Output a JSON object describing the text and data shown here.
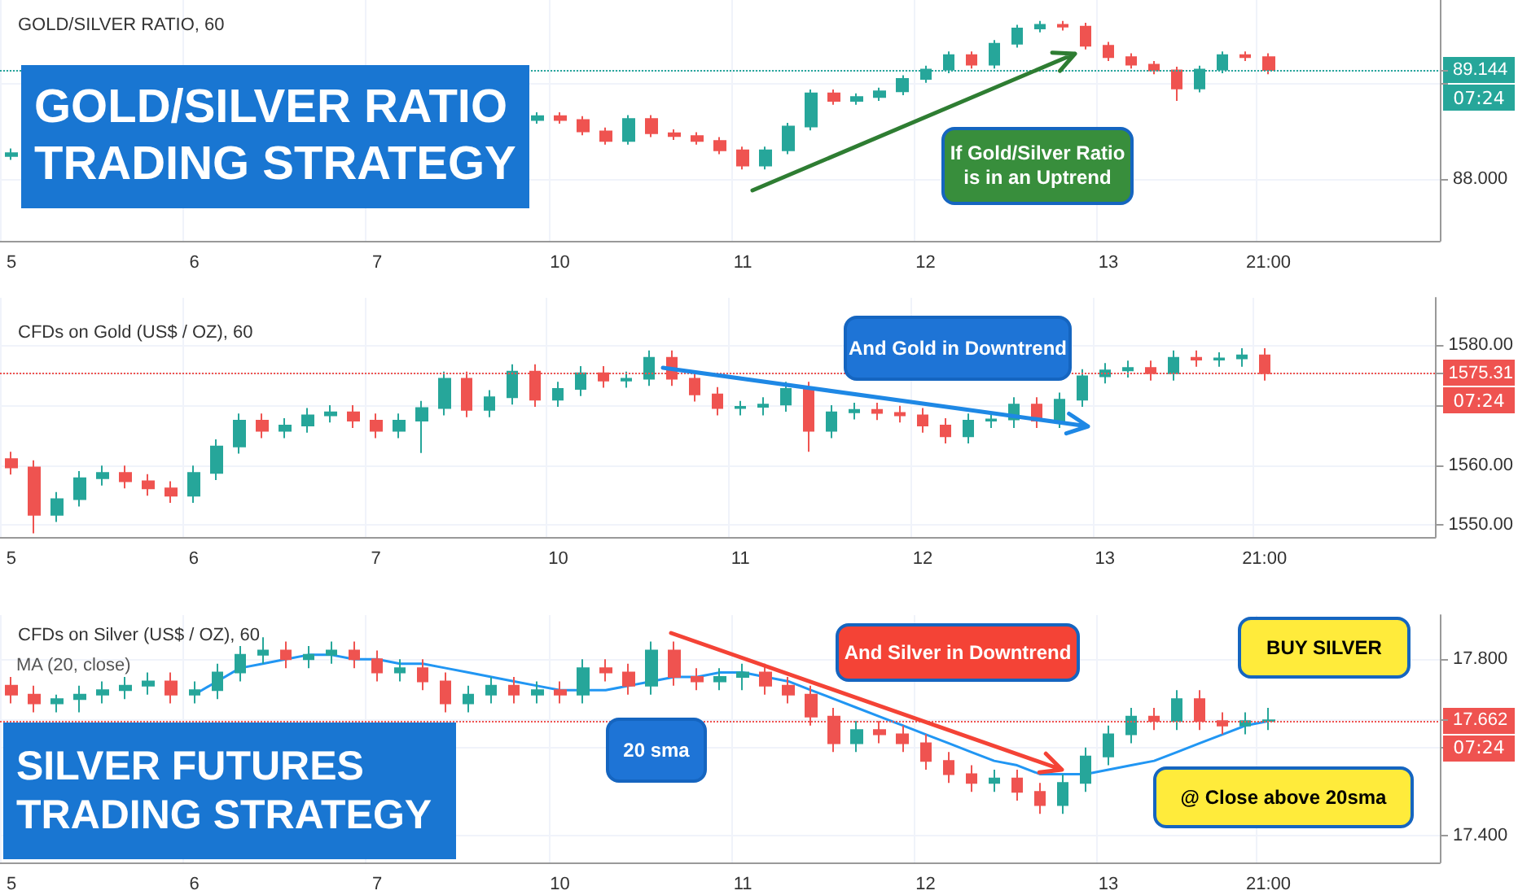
{
  "chart_data": [
    {
      "type": "candlestick",
      "title": "GOLD/SILVER RATIO, 60",
      "categories": [
        "5",
        null,
        null,
        null,
        null,
        null,
        null,
        null,
        "6",
        null,
        null,
        null,
        null,
        null,
        null,
        null,
        "7",
        null,
        null,
        null,
        null,
        null,
        null,
        null,
        "10",
        null,
        null,
        null,
        null,
        null,
        null,
        null,
        "11",
        null,
        null,
        null,
        null,
        null,
        null,
        null,
        "12",
        null,
        null,
        null,
        null,
        null,
        null,
        null,
        "13",
        null,
        null,
        null,
        null,
        null,
        null,
        "21:00",
        null,
        null,
        null,
        null,
        null,
        null,
        null
      ],
      "ohlc": [
        [
          88.24,
          88.32,
          88.2,
          88.27
        ],
        null,
        null,
        null,
        null,
        null,
        null,
        null,
        null,
        null,
        null,
        null,
        null,
        null,
        null,
        null,
        null,
        null,
        null,
        null,
        null,
        null,
        null,
        [
          88.62,
          88.7,
          88.58,
          88.66
        ],
        [
          88.66,
          88.7,
          88.58,
          88.62
        ],
        [
          88.62,
          88.66,
          88.46,
          88.5
        ],
        [
          88.5,
          88.54,
          88.36,
          88.4
        ],
        [
          88.4,
          88.67,
          88.36,
          88.63
        ],
        [
          88.63,
          88.67,
          88.44,
          88.48
        ],
        [
          88.48,
          88.52,
          88.41,
          88.45
        ],
        [
          88.45,
          88.49,
          88.36,
          88.4
        ],
        [
          88.4,
          88.44,
          88.26,
          88.3
        ],
        [
          88.3,
          88.34,
          88.1,
          88.14
        ],
        [
          88.14,
          88.34,
          88.1,
          88.3
        ],
        [
          88.3,
          88.59,
          88.26,
          88.55
        ],
        [
          88.55,
          88.94,
          88.51,
          88.9
        ],
        [
          88.9,
          88.94,
          88.78,
          88.82
        ],
        [
          88.82,
          88.9,
          88.78,
          88.86
        ],
        [
          88.86,
          88.96,
          88.82,
          88.92
        ],
        [
          88.92,
          89.09,
          88.88,
          89.05
        ],
        [
          89.05,
          89.19,
          89.01,
          89.15
        ],
        [
          89.15,
          89.34,
          89.11,
          89.3
        ],
        [
          89.3,
          89.34,
          89.16,
          89.2
        ],
        [
          89.2,
          89.46,
          89.16,
          89.42
        ],
        [
          89.42,
          89.62,
          89.38,
          89.58
        ],
        [
          89.58,
          89.66,
          89.54,
          89.62
        ],
        [
          89.62,
          89.66,
          89.56,
          89.6
        ],
        [
          89.6,
          89.64,
          89.36,
          89.4
        ],
        [
          89.4,
          89.44,
          89.24,
          89.28
        ],
        [
          89.28,
          89.32,
          89.16,
          89.2
        ],
        [
          89.2,
          89.24,
          89.1,
          89.14
        ],
        [
          89.14,
          89.18,
          88.82,
          88.95
        ],
        [
          88.95,
          89.19,
          88.91,
          89.15
        ],
        [
          89.15,
          89.34,
          89.11,
          89.3
        ],
        [
          89.3,
          89.34,
          89.24,
          89.28
        ],
        [
          89.28,
          89.32,
          89.1,
          89.144
        ],
        null,
        null,
        null,
        null,
        null,
        null,
        null
      ],
      "colors": [
        "#26a69a",
        null,
        null,
        null,
        null,
        null,
        null,
        null,
        null,
        null,
        null,
        null,
        null,
        null,
        null,
        null,
        null,
        null,
        null,
        null,
        null,
        null,
        null,
        "#26a69a",
        "#ef5350",
        "#ef5350",
        "#ef5350",
        "#26a69a",
        "#ef5350",
        "#ef5350",
        "#ef5350",
        "#ef5350",
        "#ef5350",
        "#26a69a",
        "#26a69a",
        "#26a69a",
        "#ef5350",
        "#26a69a",
        "#26a69a",
        "#26a69a",
        "#26a69a",
        "#26a69a",
        "#ef5350",
        "#26a69a",
        "#26a69a",
        "#26a69a",
        "#ef5350",
        "#ef5350",
        "#ef5350",
        "#ef5350",
        "#ef5350",
        "#ef5350",
        "#26a69a",
        "#26a69a",
        "#ef5350",
        "#ef5350",
        null,
        null,
        null,
        null,
        null,
        null,
        null
      ],
      "ylim": [
        87.35,
        89.88
      ],
      "yticks": [
        {
          "value": 88,
          "label": "88.000"
        },
        {
          "value": 89,
          "label": null
        },
        {
          "value": 89.144,
          "label": "89.144"
        }
      ],
      "grid": true,
      "ref_lines": [
        {
          "axis": "y",
          "value": 89.144,
          "color": "#26a69a",
          "line_style": "dotted"
        }
      ],
      "annotations": [
        "07:24",
        "GOLD/SILVER RATIO\nTRADING STRATEGY",
        "If Gold/Silver Ratio\nis in an Uptrend"
      ]
    },
    {
      "type": "candlestick",
      "title": "CFDs on Gold (US$ / OZ), 60",
      "categories": [
        "5",
        null,
        null,
        null,
        null,
        null,
        null,
        null,
        "6",
        null,
        null,
        null,
        null,
        null,
        null,
        null,
        "7",
        null,
        null,
        null,
        null,
        null,
        null,
        null,
        "10",
        null,
        null,
        null,
        null,
        null,
        null,
        null,
        "11",
        null,
        null,
        null,
        null,
        null,
        null,
        null,
        "12",
        null,
        null,
        null,
        null,
        null,
        null,
        null,
        "13",
        null,
        null,
        null,
        null,
        null,
        null,
        "21:00",
        null,
        null,
        null,
        null,
        null,
        null,
        null
      ],
      "ohlc": [
        [
          1561.0,
          1562.2,
          1558.4,
          1559.6
        ],
        [
          1559.6,
          1560.8,
          1548.6,
          1551.7
        ],
        [
          1551.7,
          1555.5,
          1550.5,
          1554.3
        ],
        [
          1554.3,
          1559.0,
          1553.1,
          1557.8
        ],
        [
          1557.8,
          1559.9,
          1556.6,
          1558.7
        ],
        [
          1558.7,
          1559.9,
          1556.1,
          1557.3
        ],
        [
          1557.3,
          1558.5,
          1554.9,
          1556.1
        ],
        [
          1556.1,
          1557.3,
          1553.7,
          1554.9
        ],
        [
          1554.9,
          1559.9,
          1553.7,
          1558.7
        ],
        [
          1558.7,
          1564.3,
          1557.5,
          1563.1
        ],
        [
          1563.1,
          1568.6,
          1561.9,
          1567.4
        ],
        [
          1567.4,
          1568.6,
          1564.5,
          1565.7
        ],
        [
          1565.7,
          1567.8,
          1564.5,
          1566.6
        ],
        [
          1566.6,
          1569.5,
          1565.4,
          1568.3
        ],
        [
          1568.3,
          1570.0,
          1567.1,
          1568.8
        ],
        [
          1568.8,
          1570.0,
          1566.2,
          1567.4
        ],
        [
          1567.4,
          1568.6,
          1564.5,
          1565.7
        ],
        [
          1565.7,
          1568.6,
          1564.5,
          1567.4
        ],
        [
          1567.4,
          1570.7,
          1562.0,
          1569.5
        ],
        [
          1569.5,
          1575.6,
          1568.3,
          1574.4
        ],
        [
          1574.4,
          1575.6,
          1568.0,
          1569.2
        ],
        [
          1569.2,
          1572.5,
          1568.0,
          1571.3
        ],
        [
          1571.3,
          1576.8,
          1570.1,
          1575.6
        ],
        [
          1575.6,
          1576.8,
          1569.7,
          1570.9
        ],
        [
          1570.9,
          1573.9,
          1569.7,
          1572.7
        ],
        [
          1572.7,
          1576.5,
          1571.5,
          1575.3
        ],
        [
          1575.3,
          1576.5,
          1572.9,
          1574.1
        ],
        [
          1574.1,
          1575.6,
          1572.9,
          1574.4
        ],
        [
          1574.4,
          1579.1,
          1573.2,
          1577.9
        ],
        [
          1577.9,
          1579.1,
          1573.2,
          1574.4
        ],
        [
          1574.4,
          1575.6,
          1570.6,
          1571.8
        ],
        [
          1571.8,
          1573.0,
          1568.3,
          1569.5
        ],
        [
          1569.5,
          1570.7,
          1568.3,
          1569.7
        ],
        [
          1569.7,
          1571.3,
          1568.3,
          1570.1
        ],
        [
          1570.1,
          1573.9,
          1568.9,
          1572.7
        ],
        [
          1572.7,
          1573.9,
          1562.2,
          1565.7
        ],
        [
          1565.7,
          1570.0,
          1564.5,
          1568.8
        ],
        [
          1568.8,
          1570.4,
          1567.6,
          1569.2
        ],
        [
          1569.2,
          1570.4,
          1567.5,
          1568.7
        ],
        [
          1568.7,
          1569.9,
          1567.1,
          1568.3
        ],
        [
          1568.3,
          1569.5,
          1565.4,
          1566.6
        ],
        [
          1566.6,
          1567.8,
          1563.6,
          1564.8
        ],
        [
          1564.8,
          1568.6,
          1563.6,
          1567.4
        ],
        [
          1567.4,
          1568.6,
          1566.2,
          1567.6
        ],
        [
          1567.6,
          1571.3,
          1566.2,
          1570.1
        ],
        [
          1570.1,
          1571.3,
          1566.2,
          1567.4
        ],
        [
          1567.4,
          1572.1,
          1566.2,
          1570.9
        ],
        [
          1570.9,
          1576.0,
          1569.7,
          1574.8
        ],
        [
          1574.8,
          1577.0,
          1573.6,
          1575.8
        ],
        [
          1575.8,
          1577.4,
          1574.6,
          1576.2
        ],
        [
          1576.2,
          1577.4,
          1574.1,
          1575.3
        ],
        [
          1575.3,
          1579.1,
          1574.1,
          1577.9
        ],
        [
          1577.9,
          1579.1,
          1576.4,
          1577.6
        ],
        [
          1577.6,
          1578.8,
          1576.4,
          1577.8
        ],
        [
          1577.8,
          1579.5,
          1576.4,
          1578.3
        ],
        [
          1578.3,
          1579.5,
          1574.1,
          1575.31
        ],
        null,
        null,
        null,
        null,
        null,
        null,
        null
      ],
      "colors": [
        "#ef5350",
        "#ef5350",
        "#26a69a",
        "#26a69a",
        "#26a69a",
        "#ef5350",
        "#ef5350",
        "#ef5350",
        "#26a69a",
        "#26a69a",
        "#26a69a",
        "#ef5350",
        "#26a69a",
        "#26a69a",
        "#26a69a",
        "#ef5350",
        "#ef5350",
        "#26a69a",
        "#26a69a",
        "#26a69a",
        "#ef5350",
        "#26a69a",
        "#26a69a",
        "#ef5350",
        "#26a69a",
        "#26a69a",
        "#ef5350",
        "#26a69a",
        "#26a69a",
        "#ef5350",
        "#ef5350",
        "#ef5350",
        "#26a69a",
        "#26a69a",
        "#26a69a",
        "#ef5350",
        "#26a69a",
        "#26a69a",
        "#ef5350",
        "#ef5350",
        "#ef5350",
        "#ef5350",
        "#26a69a",
        "#26a69a",
        "#26a69a",
        "#ef5350",
        "#26a69a",
        "#26a69a",
        "#26a69a",
        "#26a69a",
        "#ef5350",
        "#26a69a",
        "#ef5350",
        "#26a69a",
        "#26a69a",
        "#ef5350",
        null,
        null,
        null,
        null,
        null,
        null,
        null
      ],
      "ylim": [
        1548.0,
        1587.9
      ],
      "yticks": [
        {
          "value": 1550,
          "label": "1550.00"
        },
        {
          "value": 1560,
          "label": "1560.00"
        },
        {
          "value": 1570,
          "label": null
        },
        {
          "value": 1575.31,
          "label": "1575.31"
        },
        {
          "value": 1580,
          "label": "1580.00"
        }
      ],
      "grid": true,
      "ref_lines": [
        {
          "axis": "y",
          "value": 1575.31,
          "color": "#ef5350",
          "line_style": "dotted"
        }
      ],
      "annotations": [
        "07:24",
        "And Gold in Downtrend"
      ]
    },
    {
      "type": "candlestick",
      "title": "CFDs on Silver (US$ / OZ), 60",
      "categories": [
        "5",
        null,
        null,
        null,
        null,
        null,
        null,
        null,
        "6",
        null,
        null,
        null,
        null,
        null,
        null,
        null,
        "7",
        null,
        null,
        null,
        null,
        null,
        null,
        null,
        "10",
        null,
        null,
        null,
        null,
        null,
        null,
        null,
        "11",
        null,
        null,
        null,
        null,
        null,
        null,
        null,
        "12",
        null,
        null,
        null,
        null,
        null,
        null,
        null,
        "13",
        null,
        null,
        null,
        null,
        null,
        null,
        "21:00",
        null,
        null,
        null,
        null,
        null,
        null,
        null
      ],
      "series": [
        {
          "ohlc": [
            [
              17.74,
              17.76,
              17.7,
              17.72
            ],
            [
              17.72,
              17.74,
              17.68,
              17.7
            ],
            [
              17.7,
              17.72,
              17.68,
              17.71
            ],
            [
              17.71,
              17.74,
              17.68,
              17.72
            ],
            [
              17.72,
              17.75,
              17.7,
              17.73
            ],
            [
              17.73,
              17.76,
              17.71,
              17.74
            ],
            [
              17.74,
              17.77,
              17.72,
              17.75
            ],
            [
              17.75,
              17.77,
              17.7,
              17.72
            ],
            [
              17.72,
              17.75,
              17.7,
              17.73
            ],
            [
              17.73,
              17.79,
              17.71,
              17.77
            ],
            [
              17.77,
              17.83,
              17.75,
              17.81
            ],
            [
              17.81,
              17.85,
              17.79,
              17.82
            ],
            [
              17.82,
              17.84,
              17.78,
              17.8
            ],
            [
              17.8,
              17.83,
              17.78,
              17.81
            ],
            [
              17.81,
              17.84,
              17.79,
              17.82
            ],
            [
              17.82,
              17.84,
              17.78,
              17.8
            ],
            [
              17.8,
              17.82,
              17.75,
              17.77
            ],
            [
              17.77,
              17.8,
              17.75,
              17.78
            ],
            [
              17.78,
              17.8,
              17.73,
              17.75
            ],
            [
              17.75,
              17.77,
              17.68,
              17.7
            ],
            [
              17.7,
              17.74,
              17.68,
              17.72
            ],
            [
              17.72,
              17.76,
              17.7,
              17.74
            ],
            [
              17.74,
              17.76,
              17.7,
              17.72
            ],
            [
              17.72,
              17.75,
              17.7,
              17.73
            ],
            [
              17.73,
              17.75,
              17.7,
              17.72
            ],
            [
              17.72,
              17.8,
              17.7,
              17.78
            ],
            [
              17.78,
              17.8,
              17.75,
              17.77
            ],
            [
              17.77,
              17.79,
              17.72,
              17.74
            ],
            [
              17.74,
              17.84,
              17.72,
              17.82
            ],
            [
              17.82,
              17.84,
              17.74,
              17.76
            ],
            [
              17.76,
              17.78,
              17.73,
              17.75
            ],
            [
              17.75,
              17.78,
              17.73,
              17.76
            ],
            [
              17.76,
              17.79,
              17.73,
              17.77
            ],
            [
              17.77,
              17.79,
              17.72,
              17.74
            ],
            [
              17.74,
              17.76,
              17.7,
              17.72
            ],
            [
              17.72,
              17.74,
              17.65,
              17.67
            ],
            [
              17.67,
              17.69,
              17.59,
              17.61
            ],
            [
              17.61,
              17.66,
              17.59,
              17.64
            ],
            [
              17.64,
              17.66,
              17.61,
              17.63
            ],
            [
              17.63,
              17.65,
              17.59,
              17.61
            ],
            [
              17.61,
              17.63,
              17.55,
              17.57
            ],
            [
              17.57,
              17.59,
              17.52,
              17.54
            ],
            [
              17.54,
              17.56,
              17.5,
              17.52
            ],
            [
              17.52,
              17.55,
              17.5,
              17.53
            ],
            [
              17.53,
              17.55,
              17.48,
              17.5
            ],
            [
              17.5,
              17.52,
              17.45,
              17.47
            ],
            [
              17.47,
              17.54,
              17.45,
              17.52
            ],
            [
              17.52,
              17.6,
              17.5,
              17.58
            ],
            [
              17.58,
              17.65,
              17.56,
              17.63
            ],
            [
              17.63,
              17.69,
              17.61,
              17.67
            ],
            [
              17.67,
              17.69,
              17.64,
              17.66
            ],
            [
              17.66,
              17.73,
              17.64,
              17.71
            ],
            [
              17.71,
              17.73,
              17.64,
              17.66
            ],
            [
              17.66,
              17.68,
              17.63,
              17.65
            ],
            [
              17.65,
              17.68,
              17.63,
              17.66
            ],
            [
              17.66,
              17.69,
              17.64,
              17.662
            ],
            null,
            null,
            null,
            null,
            null,
            null,
            null
          ],
          "colors": [
            "#ef5350",
            "#ef5350",
            "#26a69a",
            "#26a69a",
            "#26a69a",
            "#26a69a",
            "#26a69a",
            "#ef5350",
            "#26a69a",
            "#26a69a",
            "#26a69a",
            "#26a69a",
            "#ef5350",
            "#26a69a",
            "#26a69a",
            "#ef5350",
            "#ef5350",
            "#26a69a",
            "#ef5350",
            "#ef5350",
            "#26a69a",
            "#26a69a",
            "#ef5350",
            "#26a69a",
            "#ef5350",
            "#26a69a",
            "#ef5350",
            "#ef5350",
            "#26a69a",
            "#ef5350",
            "#ef5350",
            "#26a69a",
            "#26a69a",
            "#ef5350",
            "#ef5350",
            "#ef5350",
            "#ef5350",
            "#26a69a",
            "#ef5350",
            "#ef5350",
            "#ef5350",
            "#ef5350",
            "#ef5350",
            "#26a69a",
            "#ef5350",
            "#ef5350",
            "#26a69a",
            "#26a69a",
            "#26a69a",
            "#26a69a",
            "#ef5350",
            "#26a69a",
            "#ef5350",
            "#ef5350",
            "#26a69a",
            "#26a69a",
            null,
            null,
            null,
            null,
            null,
            null,
            null
          ]
        },
        {
          "type": "line",
          "name": "MA (20, close)",
          "color": "#2196f3",
          "values": [
            null,
            null,
            null,
            null,
            null,
            null,
            null,
            null,
            17.72,
            17.75,
            17.78,
            17.79,
            17.8,
            17.81,
            17.81,
            17.8,
            17.8,
            17.79,
            17.79,
            17.78,
            17.77,
            17.76,
            17.75,
            17.74,
            17.73,
            17.73,
            17.73,
            17.74,
            17.75,
            17.76,
            17.76,
            17.77,
            17.77,
            17.76,
            17.75,
            17.73,
            17.71,
            17.69,
            17.67,
            17.65,
            17.63,
            17.61,
            17.59,
            17.57,
            17.56,
            17.54,
            17.54,
            17.54,
            17.55,
            17.56,
            17.57,
            17.59,
            17.61,
            17.63,
            17.65,
            17.66,
            null,
            null,
            null,
            null,
            null,
            null,
            null
          ]
        }
      ],
      "ylim": [
        17.34,
        17.9
      ],
      "yticks": [
        {
          "value": 17.4,
          "label": "17.400"
        },
        {
          "value": 17.6,
          "label": null
        },
        {
          "value": 17.662,
          "label": "17.662"
        },
        {
          "value": 17.8,
          "label": "17.800"
        }
      ],
      "grid": true,
      "legend": "top left",
      "ref_lines": [
        {
          "axis": "y",
          "value": 17.662,
          "color": "#ef5350",
          "line_style": "dotted"
        }
      ],
      "annotations": [
        "07:24",
        "SILVER FUTURES\nTRADING STRATEGY",
        "20 sma",
        "And Silver in Downtrend",
        "BUY SILVER",
        "@ Close above 20sma"
      ]
    }
  ]
}
